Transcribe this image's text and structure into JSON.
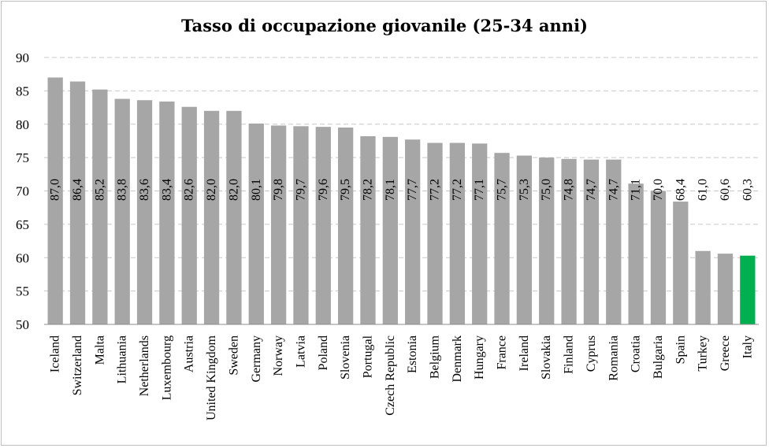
{
  "chart_data": {
    "type": "bar",
    "title": "Tasso di occupazione giovanile (25-34 anni)",
    "xlabel": "",
    "ylabel": "",
    "ylim": [
      50,
      90
    ],
    "yticks": [
      "50",
      "55",
      "60",
      "65",
      "70",
      "75",
      "80",
      "85",
      "90"
    ],
    "grid": true,
    "categories": [
      "Iceland",
      "Switzerland",
      "Malta",
      "Lithuania",
      "Netherlands",
      "Luxembourg",
      "Austria",
      "United Kingdom",
      "Sweden",
      "Germany",
      "Norway",
      "Latvia",
      "Poland",
      "Slovenia",
      "Portugal",
      "Czech Republic",
      "Estonia",
      "Belgium",
      "Denmark",
      "Hungary",
      "France",
      "Ireland",
      "Slovakia",
      "Finland",
      "Cyprus",
      "Romania",
      "Croatia",
      "Bulgaria",
      "Spain",
      "Turkey",
      "Greece",
      "Italy"
    ],
    "values": [
      87.0,
      86.4,
      85.2,
      83.8,
      83.6,
      83.4,
      82.6,
      82.0,
      82.0,
      80.1,
      79.8,
      79.7,
      79.6,
      79.5,
      78.2,
      78.1,
      77.7,
      77.2,
      77.2,
      77.1,
      75.7,
      75.3,
      75.0,
      74.8,
      74.7,
      74.7,
      71.1,
      70.0,
      68.4,
      61.0,
      60.6,
      60.3
    ],
    "labels": [
      "87,0",
      "86,4",
      "85,2",
      "83,8",
      "83,6",
      "83,4",
      "82,6",
      "82,0",
      "82,0",
      "80,1",
      "79,8",
      "79,7",
      "79,6",
      "79,5",
      "78,2",
      "78,1",
      "77,7",
      "77,2",
      "77,2",
      "77,1",
      "75,7",
      "75,3",
      "75,0",
      "74,8",
      "74,7",
      "74,7",
      "71,1",
      "70,0",
      "68,4",
      "61,0",
      "60,6",
      "60,3"
    ],
    "colors": {
      "default": "#a6a6a6",
      "highlight": "#00b050"
    },
    "highlight": "Italy"
  }
}
